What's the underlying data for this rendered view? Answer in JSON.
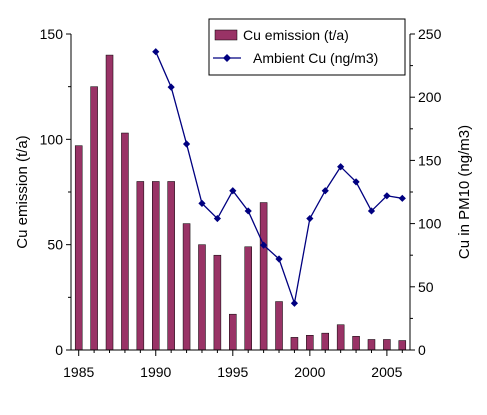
{
  "chart_data": {
    "type": "bar",
    "title": "",
    "xlabel": "",
    "ylabel": "Cu emission (t/a)",
    "y2label": "Cu in PM10 (ng/m3)",
    "xlim": [
      1984.5,
      2006.5
    ],
    "ylim": [
      0,
      150
    ],
    "y2lim": [
      0,
      250
    ],
    "x_ticks": [
      1985,
      1990,
      1995,
      2000,
      2005
    ],
    "y_ticks": [
      0,
      50,
      100,
      150
    ],
    "y2_ticks": [
      0,
      50,
      100,
      150,
      200,
      250
    ],
    "grid": false,
    "legend_position": "top-right",
    "series": [
      {
        "name": "Cu emission (t/a)",
        "type": "bar",
        "axis": "left",
        "color": "#993366",
        "x": [
          1985,
          1986,
          1987,
          1988,
          1989,
          1990,
          1991,
          1992,
          1993,
          1994,
          1995,
          1996,
          1997,
          1998,
          1999,
          2000,
          2001,
          2002,
          2003,
          2004,
          2005,
          2006
        ],
        "values": [
          97,
          125,
          140,
          103,
          80,
          80,
          80,
          60,
          50,
          45,
          17,
          49,
          70,
          23,
          6,
          7,
          8,
          12,
          6.5,
          5,
          5,
          4.5
        ]
      },
      {
        "name": "Ambient Cu (ng/m3)",
        "type": "line",
        "axis": "right",
        "color": "#000080",
        "marker": "diamond",
        "x": [
          1990,
          1991,
          1992,
          1993,
          1994,
          1995,
          1996,
          1997,
          1998,
          1999,
          2000,
          2001,
          2002,
          2003,
          2004,
          2005,
          2006
        ],
        "values": [
          236,
          208,
          163,
          116,
          104,
          126,
          110,
          83,
          72,
          37,
          104,
          126,
          145,
          133,
          110,
          122,
          120
        ]
      }
    ]
  }
}
